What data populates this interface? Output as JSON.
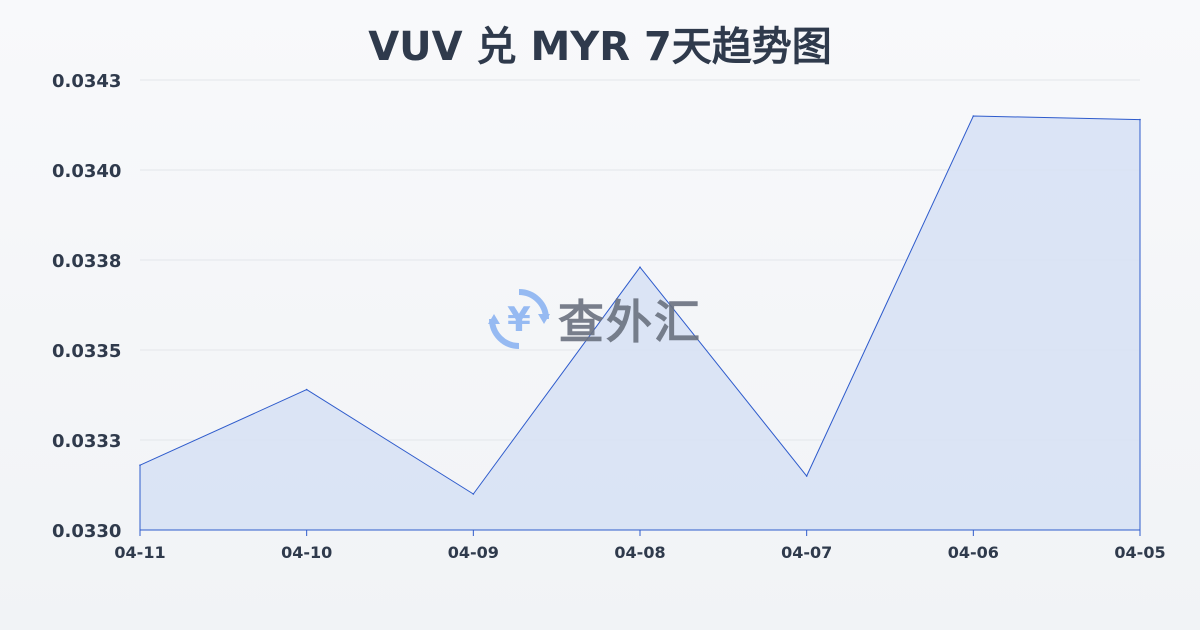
{
  "chart_data": {
    "type": "area",
    "title": "VUV 兑 MYR 7天趋势图",
    "xlabel": "",
    "ylabel": "",
    "categories": [
      "04-11",
      "04-10",
      "04-09",
      "04-08",
      "04-07",
      "04-06",
      "04-05"
    ],
    "values": [
      0.03318,
      0.03339,
      0.0331,
      0.03373,
      0.03315,
      0.03415,
      0.03414
    ],
    "y_ticks": [
      0.033,
      0.03325,
      0.0335,
      0.03375,
      0.034,
      0.03425
    ],
    "y_tick_labels": [
      "0.0330",
      "0.0333",
      "0.0335",
      "0.0338",
      "0.0340",
      "0.0343"
    ],
    "ylim": [
      0.033,
      0.03425
    ],
    "grid": true,
    "line_color": "#2e5bcc",
    "fill_color": "#d6e1f5"
  },
  "watermark": {
    "text": "查外汇",
    "icon": "yen-exchange-icon",
    "color": "#7aa7f0"
  }
}
